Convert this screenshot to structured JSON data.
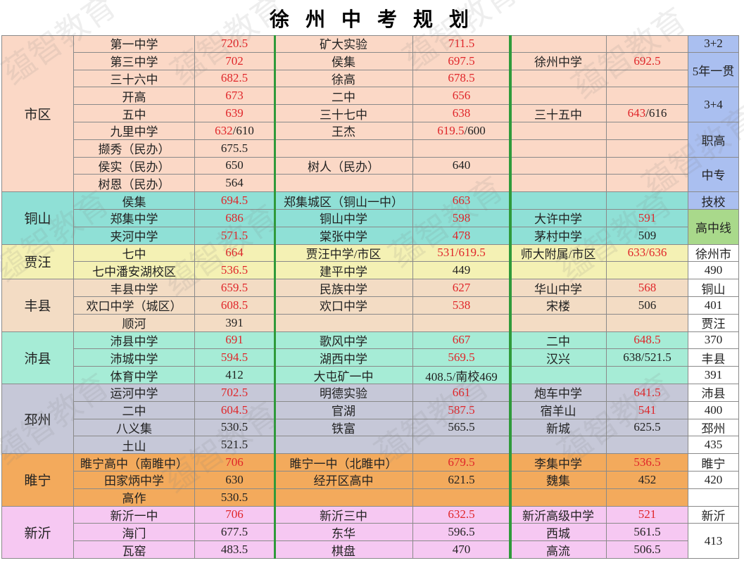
{
  "title": "徐 州 中 考 规 划",
  "watermark": "蕴智教育",
  "sections": [
    {
      "region": "市区",
      "color": "#fbd8c6",
      "rows": [
        [
          "第一中学",
          {
            "text": "720.5",
            "red": true
          },
          "矿大实验",
          {
            "text": "711.5",
            "red": true
          },
          null,
          null
        ],
        [
          "第三中学",
          {
            "text": "702",
            "red": true
          },
          "侯集",
          {
            "text": "697.5",
            "red": true
          },
          "徐州中学",
          {
            "text": "692.5",
            "red": true
          }
        ],
        [
          "三十六中",
          {
            "text": "682.5",
            "red": true
          },
          "徐高",
          {
            "text": "678.5",
            "red": true
          },
          null,
          null
        ],
        [
          "开高",
          {
            "text": "673",
            "red": true
          },
          "二中",
          {
            "text": "656",
            "red": true
          },
          null,
          null
        ],
        [
          "五中",
          {
            "text": "639",
            "red": true
          },
          "三十七中",
          {
            "text": "638",
            "red": true
          },
          "三十五中",
          {
            "text": "643",
            "red": true,
            "extra": "/616"
          }
        ],
        [
          "九里中学",
          {
            "text": "632",
            "red": true,
            "extra": "/610"
          },
          "王杰",
          {
            "text": "619.5",
            "red": true,
            "extra": "/600"
          },
          null,
          null
        ],
        [
          "撷秀（民办）",
          {
            "text": "675.5",
            "red": false
          },
          null,
          null,
          null,
          null
        ],
        [
          "侯实（民办）",
          {
            "text": "650",
            "red": false
          },
          "树人（民办）",
          {
            "text": "640",
            "red": false
          },
          null,
          null
        ],
        [
          "树恩（民办）",
          {
            "text": "564",
            "red": false
          },
          null,
          null,
          null,
          null
        ]
      ]
    },
    {
      "region": "铜山",
      "color": "#8fe0d6",
      "rows": [
        [
          "侯集",
          {
            "text": "694.5",
            "red": true
          },
          "郑集城区（铜山一中）",
          {
            "text": "663",
            "red": true
          },
          null,
          null
        ],
        [
          "郑集中学",
          {
            "text": "686",
            "red": true
          },
          "铜山中学",
          {
            "text": "598",
            "red": true
          },
          "大许中学",
          {
            "text": "591",
            "red": true
          }
        ],
        [
          "夹河中学",
          {
            "text": "571.5",
            "red": true
          },
          "棠张中学",
          {
            "text": "478",
            "red": true
          },
          "茅村中学",
          {
            "text": "509",
            "red": false
          }
        ]
      ]
    },
    {
      "region": "贾汪",
      "color": "#f4f1b4",
      "rows": [
        [
          "七中",
          {
            "text": "664",
            "red": true
          },
          "贾汪中学/市区",
          {
            "text": "531/619.5",
            "red": true
          },
          "师大附属/市区",
          {
            "text": "633/636",
            "red": true
          }
        ],
        [
          "七中潘安湖校区",
          {
            "text": "536.5",
            "red": true
          },
          "建平中学",
          {
            "text": "449",
            "red": false
          },
          null,
          null
        ]
      ]
    },
    {
      "region": "丰县",
      "color": "#f3dcc4",
      "rows": [
        [
          "丰县中学",
          {
            "text": "659.5",
            "red": true
          },
          "民族中学",
          {
            "text": "627",
            "red": true
          },
          "华山中学",
          {
            "text": "568",
            "red": true
          }
        ],
        [
          "欢口中学（城区）",
          {
            "text": "608.5",
            "red": true
          },
          "欢口中学",
          {
            "text": "538",
            "red": true
          },
          "宋楼",
          {
            "text": "506",
            "red": false
          }
        ],
        [
          "顺河",
          {
            "text": "391",
            "red": false
          },
          null,
          null,
          null,
          null
        ]
      ]
    },
    {
      "region": "沛县",
      "color": "#a6ecd6",
      "rows": [
        [
          "沛县中学",
          {
            "text": "691",
            "red": true
          },
          "歌风中学",
          {
            "text": "667",
            "red": true
          },
          "二中",
          {
            "text": "648.5",
            "red": true
          }
        ],
        [
          "沛城中学",
          {
            "text": "594.5",
            "red": true
          },
          "湖西中学",
          {
            "text": "569.5",
            "red": true
          },
          "汉兴",
          {
            "text": "638/521.5",
            "red": false
          }
        ],
        [
          "体育中学",
          {
            "text": "412",
            "red": false
          },
          "大屯矿一中",
          {
            "text": "408.5/南校469",
            "red": false
          },
          null,
          null
        ]
      ]
    },
    {
      "region": "邳州",
      "color": "#c6c8d8",
      "rows": [
        [
          "运河中学",
          {
            "text": "702.5",
            "red": true
          },
          "明德实验",
          {
            "text": "661",
            "red": true
          },
          "炮车中学",
          {
            "text": "641.5",
            "red": true
          }
        ],
        [
          "二中",
          {
            "text": "604.5",
            "red": true
          },
          "官湖",
          {
            "text": "587.5",
            "red": true
          },
          "宿羊山",
          {
            "text": "541",
            "red": true
          }
        ],
        [
          "八义集",
          {
            "text": "530.5",
            "red": false
          },
          "铁富",
          {
            "text": "565.5",
            "red": false
          },
          "新城",
          {
            "text": "625.5",
            "red": false
          }
        ],
        [
          "土山",
          {
            "text": "521.5",
            "red": false
          },
          null,
          null,
          null,
          null
        ]
      ]
    },
    {
      "region": "睢宁",
      "color": "#f3aa5c",
      "rows": [
        [
          "睢宁高中（南睢中）",
          {
            "text": "706",
            "red": true
          },
          "睢宁一中（北睢中）",
          {
            "text": "679.5",
            "red": true
          },
          "李集中学",
          {
            "text": "536.5",
            "red": true
          }
        ],
        [
          "田家炳中学",
          {
            "text": "630",
            "red": false
          },
          "经开区高中",
          {
            "text": "621.5",
            "red": false
          },
          "魏集",
          {
            "text": "452",
            "red": false
          }
        ],
        [
          "高作",
          {
            "text": "530.5",
            "red": false
          },
          null,
          null,
          null,
          null
        ]
      ]
    },
    {
      "region": "新沂",
      "color": "#f6c8f2",
      "rows": [
        [
          "新沂一中",
          {
            "text": "706",
            "red": true
          },
          "新沂三中",
          {
            "text": "632.5",
            "red": true
          },
          "新沂高级中学",
          {
            "text": "521",
            "red": true
          }
        ],
        [
          "海门",
          {
            "text": "677.5",
            "red": false
          },
          "东华",
          {
            "text": "596.5",
            "red": false
          },
          "西城",
          {
            "text": "561.5",
            "red": false
          }
        ],
        [
          "瓦窑",
          {
            "text": "483.5",
            "red": false
          },
          "棋盘",
          {
            "text": "470",
            "red": false
          },
          "高流",
          {
            "text": "506.5",
            "red": false
          }
        ]
      ]
    }
  ],
  "side": [
    {
      "text": "3+2",
      "color": "#aabff0"
    },
    {
      "text": "5年一贯",
      "color": "#aabff0"
    },
    {
      "text": "3+4",
      "color": "#aabff0"
    },
    {
      "text": "职高",
      "color": "#aabff0"
    },
    {
      "text": "中专",
      "color": "#aabff0"
    },
    {
      "text": "技校",
      "color": "#aabff0"
    },
    {
      "text": "高中线",
      "color": "#a9d98b"
    },
    {
      "text": "徐州市"
    },
    {
      "text": "490"
    },
    {
      "text": "铜山"
    },
    {
      "text": "401"
    },
    {
      "text": "贾汪"
    },
    {
      "text": "370"
    },
    {
      "text": "丰县"
    },
    {
      "text": "391"
    },
    {
      "text": "沛县"
    },
    {
      "text": "400"
    },
    {
      "text": "邳州"
    },
    {
      "text": "435"
    },
    {
      "text": "睢宁"
    },
    {
      "text": "420"
    },
    {
      "text": "新沂"
    },
    {
      "text": "413"
    }
  ]
}
